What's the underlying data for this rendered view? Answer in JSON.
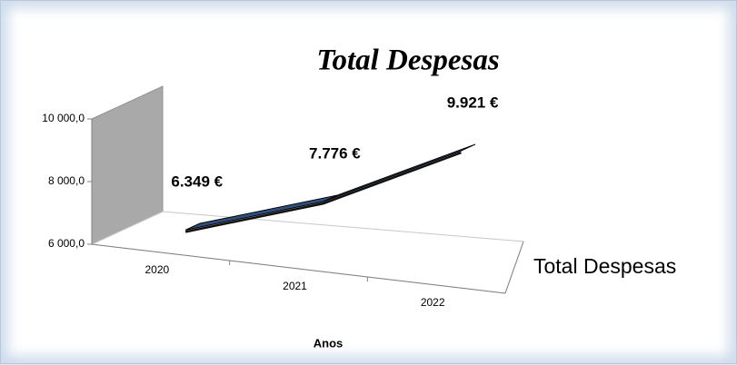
{
  "chart_data": {
    "type": "line3d",
    "title": "Total Despesas",
    "categories": [
      "2020",
      "2021",
      "2022"
    ],
    "series": [
      {
        "name": "Total Despesas",
        "color": "#2f4f7f",
        "values": [
          6349,
          7776,
          9921
        ],
        "value_labels": [
          "6.349 €",
          "7.776 €",
          "9.921 €"
        ]
      }
    ],
    "x_label": "Anos",
    "ylim": [
      6000,
      10000
    ],
    "yticks": [
      {
        "value": 6000,
        "label": "6 000,0"
      },
      {
        "value": 8000,
        "label": "8 000,0"
      },
      {
        "value": 10000,
        "label": "10 000,0"
      }
    ]
  }
}
